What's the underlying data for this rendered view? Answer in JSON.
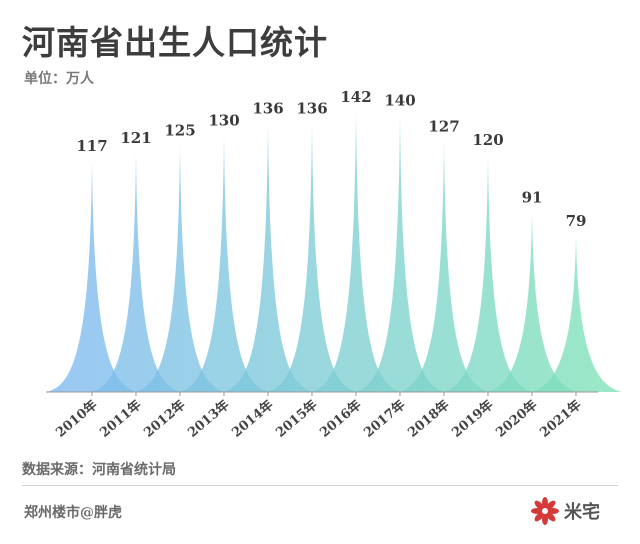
{
  "title": "河南省出生人口统计",
  "unit": "单位：万人",
  "source": "数据来源：河南省统计局",
  "author": "郑州楼市@胖虎",
  "logo_text": "米宅",
  "colors": {
    "start": "#7eb8f2",
    "end": "#7de3b5",
    "logo": "#d43a3a"
  },
  "chart_data": {
    "type": "area",
    "title": "河南省出生人口统计",
    "ylabel": "单位：万人",
    "xlabel": "",
    "ylim": [
      0,
      150
    ],
    "grid": false,
    "categories": [
      "2010年",
      "2011年",
      "2012年",
      "2013年",
      "2014年",
      "2015年",
      "2016年",
      "2017年",
      "2018年",
      "2019年",
      "2020年",
      "2021年"
    ],
    "values": [
      117,
      121,
      125,
      130,
      136,
      136,
      142,
      140,
      127,
      120,
      91,
      79
    ],
    "labels": [
      "117",
      "121",
      "125",
      "130",
      "136",
      "136",
      "142",
      "140",
      "127",
      "120",
      "91",
      "79"
    ]
  }
}
